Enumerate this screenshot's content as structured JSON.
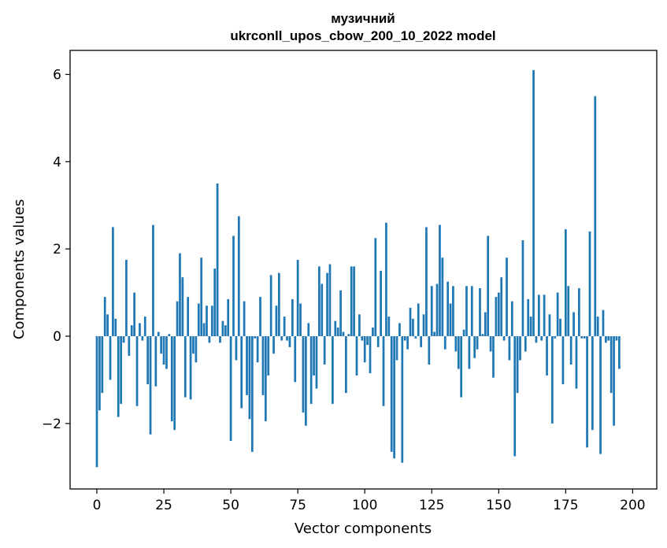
{
  "chart_data": {
    "type": "bar",
    "title": "музичний",
    "subtitle": "ukrconll_upos_cbow_200_10_2022 model",
    "xlabel": "Vector components",
    "ylabel": "Components values",
    "xlim": [
      -10,
      209
    ],
    "ylim": [
      -3.5,
      6.55
    ],
    "xticks": [
      0,
      25,
      50,
      75,
      100,
      125,
      150,
      175,
      200
    ],
    "yticks": [
      -2,
      0,
      2,
      4,
      6
    ],
    "ytick_labels": [
      "−2",
      "0",
      "2",
      "4",
      "6"
    ],
    "bar_color": "#1f77b4",
    "grid": false,
    "legend": "none",
    "values": [
      -3.0,
      -1.7,
      -1.3,
      0.9,
      0.5,
      -1.0,
      2.5,
      0.4,
      -1.85,
      -1.55,
      -0.15,
      1.75,
      -0.45,
      0.25,
      1.0,
      -1.6,
      0.3,
      -0.1,
      0.45,
      -1.1,
      -2.25,
      2.55,
      -1.15,
      0.1,
      -0.4,
      -0.65,
      -0.75,
      0.05,
      -1.95,
      -2.15,
      0.8,
      1.9,
      1.35,
      -1.4,
      0.9,
      -1.45,
      -0.4,
      -0.6,
      0.75,
      1.8,
      0.3,
      0.7,
      -0.15,
      0.7,
      1.55,
      3.5,
      -0.15,
      0.35,
      0.25,
      0.85,
      -2.4,
      2.3,
      -0.55,
      2.75,
      -1.65,
      0.8,
      -1.35,
      -1.9,
      -2.65,
      -0.05,
      -0.6,
      0.9,
      -1.35,
      -1.95,
      -0.9,
      1.4,
      -0.4,
      0.7,
      1.45,
      -0.1,
      0.45,
      -0.1,
      -0.25,
      0.85,
      -1.05,
      1.75,
      0.75,
      -1.75,
      -2.05,
      0.3,
      -1.55,
      -0.9,
      -1.2,
      1.6,
      1.2,
      -0.65,
      1.45,
      1.65,
      -1.55,
      0.35,
      0.2,
      1.05,
      0.1,
      -1.3,
      0.05,
      1.6,
      1.6,
      -0.9,
      0.5,
      -0.1,
      -0.6,
      -0.2,
      -0.85,
      0.2,
      2.25,
      -0.25,
      1.5,
      -1.6,
      2.6,
      0.45,
      -2.65,
      -2.8,
      -0.55,
      0.3,
      -2.9,
      -0.1,
      -0.3,
      0.65,
      0.4,
      -0.05,
      0.75,
      -0.25,
      0.5,
      2.5,
      -0.65,
      1.15,
      0.1,
      1.2,
      2.55,
      1.8,
      -0.3,
      1.25,
      0.75,
      1.15,
      -0.35,
      -0.75,
      -1.4,
      0.15,
      1.15,
      -0.75,
      1.15,
      -0.5,
      -0.3,
      1.1,
      0.05,
      0.55,
      2.3,
      -0.35,
      -0.95,
      0.9,
      1.0,
      1.35,
      -0.1,
      1.8,
      -0.55,
      0.8,
      -2.75,
      -1.3,
      -0.55,
      2.2,
      -0.35,
      0.85,
      0.45,
      6.1,
      -0.15,
      0.95,
      -0.1,
      0.95,
      -0.9,
      0.5,
      -2.0,
      -0.05,
      1.0,
      0.4,
      -1.1,
      2.45,
      1.15,
      -0.65,
      0.55,
      -1.2,
      1.1,
      -0.05,
      -0.05,
      -2.55,
      2.4,
      -2.15,
      5.5,
      0.45,
      -2.7,
      0.6,
      -0.15,
      -0.1,
      -1.3,
      -2.05,
      -0.1,
      -0.75
    ]
  }
}
